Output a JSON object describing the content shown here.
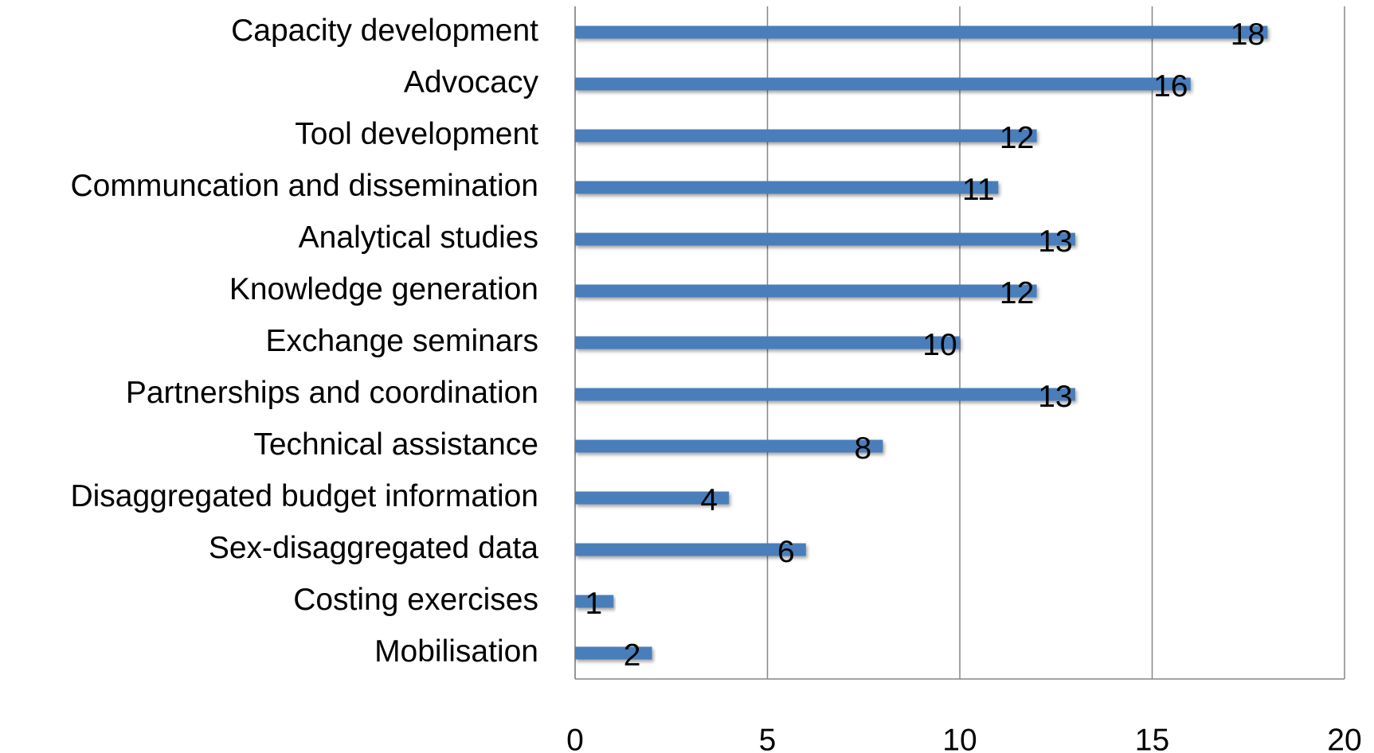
{
  "chart_data": {
    "type": "bar",
    "orientation": "horizontal",
    "categories": [
      "Capacity development",
      "Advocacy",
      "Tool development",
      "Communcation and dissemination",
      "Analytical studies",
      "Knowledge generation",
      "Exchange seminars",
      "Partnerships and coordination",
      "Technical assistance",
      "Disaggregated budget information",
      "Sex-disaggregated data",
      "Costing exercises",
      "Mobilisation"
    ],
    "values": [
      18,
      16,
      12,
      11,
      13,
      12,
      10,
      13,
      8,
      4,
      6,
      1,
      2
    ],
    "color": "#4a7ebb",
    "xlim": [
      0,
      20
    ],
    "xticks": [
      0,
      5,
      10,
      15,
      20
    ],
    "grid": true
  }
}
